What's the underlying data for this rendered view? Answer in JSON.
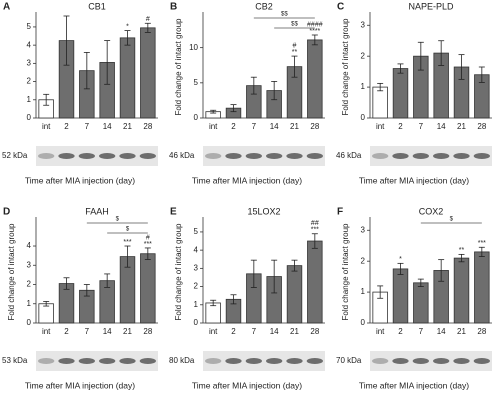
{
  "chart_data": [
    {
      "type": "bar",
      "panel_label": "A",
      "title": "CB1",
      "categories": [
        "int",
        "2",
        "7",
        "14",
        "21",
        "28"
      ],
      "values": [
        1.0,
        4.25,
        2.6,
        3.05,
        4.4,
        4.95
      ],
      "errors": [
        0.3,
        1.35,
        1.0,
        1.2,
        0.4,
        0.25
      ],
      "bar_colors": [
        "#ffffff",
        "#6e6e6e",
        "#6e6e6e",
        "#6e6e6e",
        "#6e6e6e",
        "#6e6e6e"
      ],
      "marks": [
        null,
        null,
        null,
        null,
        [
          "*"
        ],
        [
          "#"
        ]
      ],
      "brackets": [],
      "ylim": [
        0,
        5.6
      ],
      "yticks": [
        0,
        1,
        2,
        3,
        4,
        5
      ],
      "blot_label": "52 kDa",
      "x_label": "Time after MIA injection (day)"
    },
    {
      "type": "bar",
      "panel_label": "B",
      "title": "CB2",
      "y_label": "Fold change of intact group",
      "categories": [
        "int",
        "2",
        "7",
        "14",
        "21",
        "28"
      ],
      "values": [
        0.9,
        1.4,
        4.6,
        3.9,
        7.3,
        11.1
      ],
      "errors": [
        0.2,
        0.5,
        1.2,
        1.3,
        1.5,
        0.7
      ],
      "bar_colors": [
        "#ffffff",
        "#6e6e6e",
        "#6e6e6e",
        "#6e6e6e",
        "#6e6e6e",
        "#6e6e6e"
      ],
      "marks": [
        null,
        null,
        null,
        null,
        [
          "#",
          "**"
        ],
        [
          "####",
          "****"
        ]
      ],
      "brackets": [
        {
          "from": "7",
          "to": "28",
          "text": "$$"
        },
        {
          "from": "14",
          "to": "28",
          "text": "$$"
        }
      ],
      "ylim": [
        0,
        14.5
      ],
      "yticks": [
        0,
        5,
        10
      ],
      "blot_label": "46 kDa",
      "x_label": "Time after MIA injection (day)"
    },
    {
      "type": "bar",
      "panel_label": "C",
      "title": "NAPE-PLD",
      "y_label": "Fold change of intact group",
      "categories": [
        "int",
        "2",
        "7",
        "14",
        "21",
        "28"
      ],
      "values": [
        1.0,
        1.6,
        2.0,
        2.1,
        1.65,
        1.4
      ],
      "errors": [
        0.12,
        0.15,
        0.45,
        0.4,
        0.4,
        0.25
      ],
      "bar_colors": [
        "#ffffff",
        "#6e6e6e",
        "#6e6e6e",
        "#6e6e6e",
        "#6e6e6e",
        "#6e6e6e"
      ],
      "marks": [
        null,
        null,
        null,
        null,
        null,
        null
      ],
      "brackets": [],
      "ylim": [
        0,
        3.3
      ],
      "yticks": [
        0,
        1,
        2,
        3
      ],
      "blot_label": "46 kDa",
      "x_label": "Time after MIA injection (day)"
    },
    {
      "type": "bar",
      "panel_label": "D",
      "title": "FAAH",
      "y_label": "Fold change of intact group",
      "categories": [
        "int",
        "2",
        "7",
        "14",
        "21",
        "28"
      ],
      "values": [
        1.0,
        2.05,
        1.7,
        2.2,
        3.45,
        3.6
      ],
      "errors": [
        0.12,
        0.3,
        0.3,
        0.35,
        0.55,
        0.3
      ],
      "bar_colors": [
        "#ffffff",
        "#6e6e6e",
        "#6e6e6e",
        "#6e6e6e",
        "#6e6e6e",
        "#6e6e6e"
      ],
      "marks": [
        null,
        null,
        null,
        null,
        [
          "***"
        ],
        [
          "#",
          "***"
        ]
      ],
      "brackets": [
        {
          "from": "7",
          "to": "28",
          "text": "$"
        },
        {
          "from": "14",
          "to": "28",
          "text": "$"
        }
      ],
      "ylim": [
        0,
        5.3
      ],
      "yticks": [
        0,
        1,
        2,
        3,
        4
      ],
      "blot_label": "53 kDa",
      "x_label": "Time after MIA injection (day)"
    },
    {
      "type": "bar",
      "panel_label": "E",
      "title": "15LOX2",
      "y_label": "Fold change of intact group",
      "categories": [
        "int",
        "2",
        "7",
        "14",
        "21",
        "28"
      ],
      "values": [
        1.1,
        1.3,
        2.7,
        2.55,
        3.15,
        4.5
      ],
      "errors": [
        0.15,
        0.25,
        0.75,
        0.9,
        0.3,
        0.4
      ],
      "bar_colors": [
        "#ffffff",
        "#6e6e6e",
        "#6e6e6e",
        "#6e6e6e",
        "#6e6e6e",
        "#6e6e6e"
      ],
      "marks": [
        null,
        null,
        null,
        null,
        null,
        [
          "##",
          "***"
        ]
      ],
      "brackets": [],
      "ylim": [
        0,
        5.6
      ],
      "yticks": [
        0,
        1,
        2,
        3,
        4,
        5
      ],
      "blot_label": "80 kDa",
      "x_label": "Time after MIA injection (day)"
    },
    {
      "type": "bar",
      "panel_label": "F",
      "title": "COX2",
      "y_label": "Fold change of intact group",
      "categories": [
        "int",
        "2",
        "7",
        "14",
        "21",
        "28"
      ],
      "values": [
        1.0,
        1.75,
        1.3,
        1.7,
        2.1,
        2.3
      ],
      "errors": [
        0.2,
        0.18,
        0.12,
        0.35,
        0.12,
        0.15
      ],
      "bar_colors": [
        "#ffffff",
        "#6e6e6e",
        "#6e6e6e",
        "#6e6e6e",
        "#6e6e6e",
        "#6e6e6e"
      ],
      "marks": [
        null,
        [
          "*"
        ],
        null,
        null,
        [
          "**"
        ],
        [
          "***"
        ]
      ],
      "brackets": [
        {
          "from": "7",
          "to": "28",
          "text": "$"
        }
      ],
      "ylim": [
        0,
        3.3
      ],
      "yticks": [
        0,
        1,
        2,
        3
      ],
      "blot_label": "70 kDa",
      "x_label": "Time after MIA injection (day)"
    }
  ]
}
